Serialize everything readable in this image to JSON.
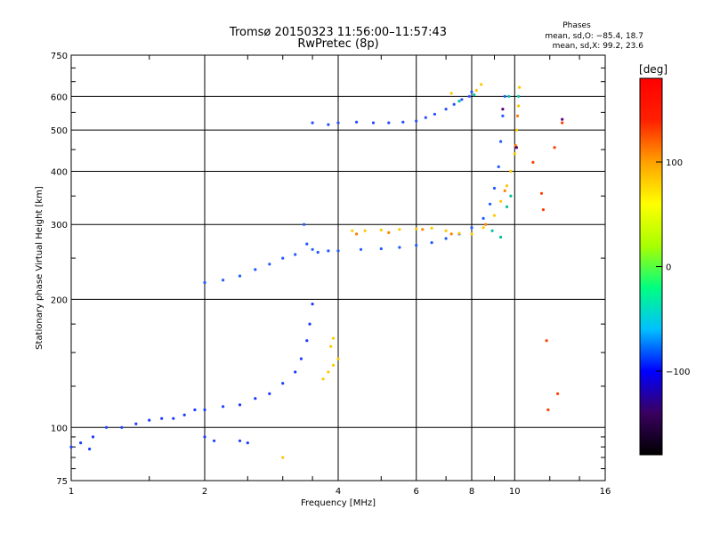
{
  "header": {
    "title_line1": "Tromsø 20150323 11:56:00–11:57:43",
    "title_line2": "RwPretec (8p)",
    "stats_heading": "Phases",
    "stats_o": "mean, sd,O: −85.4, 18.7",
    "stats_x": "mean, sd,X:  99.2, 23.6"
  },
  "chart_data": {
    "type": "scatter",
    "title": "Tromsø 20150323 11:56:00–11:57:43",
    "subtitle": "RwPretec (8p)",
    "xlabel": "Frequency [MHz]",
    "ylabel": "Stationary phase Virtual Height [km]",
    "x_scale": "log",
    "y_scale": "log",
    "xlim": [
      1,
      16
    ],
    "ylim": [
      75,
      750
    ],
    "x_ticks": [
      1,
      2,
      4,
      6,
      8,
      10,
      16
    ],
    "x_tick_labels": [
      "1",
      "2",
      "4",
      "6",
      "8",
      "10",
      "16"
    ],
    "y_ticks": [
      75,
      100,
      200,
      300,
      400,
      500,
      600,
      750
    ],
    "y_tick_labels": [
      "75",
      "100",
      "200",
      "300",
      "400",
      "500",
      "600",
      "750"
    ],
    "grid": true,
    "colorbar": {
      "label": "deg",
      "range": [
        -180,
        180
      ],
      "ticks": [
        100,
        0,
        -100
      ],
      "tick_labels": [
        "100",
        "0",
        "−100"
      ],
      "stops": [
        "#000000",
        "#3a0060",
        "#0000ff",
        "#00c0ff",
        "#00ff80",
        "#aaff00",
        "#ffff00",
        "#ffa000",
        "#ff2000",
        "#ff0000"
      ]
    },
    "series": [
      {
        "phase": -100,
        "color": "#1e3cff",
        "points": [
          [
            1.0,
            90
          ],
          [
            1.05,
            92
          ],
          [
            1.1,
            89
          ],
          [
            1.12,
            95
          ],
          [
            1.2,
            100
          ],
          [
            1.3,
            100
          ],
          [
            1.4,
            102
          ],
          [
            1.5,
            104
          ],
          [
            1.6,
            105
          ],
          [
            1.7,
            105
          ],
          [
            1.8,
            107
          ],
          [
            1.9,
            110
          ],
          [
            2.0,
            110
          ],
          [
            2.2,
            112
          ],
          [
            2.4,
            113
          ],
          [
            2.6,
            117
          ],
          [
            2.8,
            120
          ],
          [
            3.0,
            127
          ],
          [
            3.2,
            135
          ],
          [
            3.3,
            145
          ],
          [
            3.4,
            160
          ],
          [
            3.45,
            175
          ],
          [
            3.5,
            195
          ],
          [
            2.0,
            95
          ],
          [
            2.1,
            93
          ],
          [
            2.4,
            93
          ],
          [
            2.5,
            92
          ]
        ]
      },
      {
        "phase": -100,
        "color": "#1e5aff",
        "points": [
          [
            2.0,
            219
          ],
          [
            2.2,
            222
          ],
          [
            2.4,
            227
          ],
          [
            2.6,
            235
          ],
          [
            2.8,
            242
          ],
          [
            3.0,
            250
          ],
          [
            3.2,
            255
          ],
          [
            3.35,
            300
          ],
          [
            3.4,
            270
          ],
          [
            3.5,
            262
          ],
          [
            3.6,
            258
          ],
          [
            3.8,
            260
          ],
          [
            4.0,
            260
          ],
          [
            4.5,
            262
          ],
          [
            5.0,
            263
          ],
          [
            5.5,
            265
          ],
          [
            6.0,
            268
          ],
          [
            6.5,
            272
          ],
          [
            7.0,
            278
          ],
          [
            7.5,
            285
          ],
          [
            8.0,
            295
          ],
          [
            8.5,
            310
          ],
          [
            8.8,
            335
          ],
          [
            9.0,
            365
          ],
          [
            9.2,
            410
          ],
          [
            9.3,
            470
          ],
          [
            9.4,
            540
          ],
          [
            9.5,
            600
          ]
        ]
      },
      {
        "phase": -90,
        "color": "#2850ff",
        "points": [
          [
            3.5,
            520
          ],
          [
            3.8,
            515
          ],
          [
            4.0,
            520
          ],
          [
            4.4,
            522
          ],
          [
            4.8,
            520
          ],
          [
            5.2,
            520
          ],
          [
            5.6,
            522
          ],
          [
            6.0,
            525
          ],
          [
            6.3,
            535
          ],
          [
            6.6,
            545
          ],
          [
            7.0,
            560
          ],
          [
            7.3,
            575
          ],
          [
            7.6,
            590
          ],
          [
            7.9,
            600
          ],
          [
            8.0,
            615
          ]
        ]
      },
      {
        "phase": 100,
        "color": "#ffc800",
        "points": [
          [
            4.3,
            290
          ],
          [
            4.6,
            290
          ],
          [
            5.0,
            291
          ],
          [
            5.5,
            292
          ],
          [
            6.0,
            293
          ],
          [
            6.5,
            294
          ],
          [
            7.0,
            290
          ],
          [
            7.5,
            286
          ],
          [
            8.0,
            285
          ],
          [
            8.5,
            295
          ],
          [
            9.0,
            315
          ],
          [
            9.3,
            340
          ],
          [
            9.6,
            370
          ],
          [
            9.8,
            400
          ],
          [
            10.0,
            440
          ],
          [
            10.1,
            500
          ],
          [
            10.2,
            570
          ],
          [
            10.25,
            630
          ],
          [
            3.7,
            130
          ],
          [
            3.8,
            135
          ],
          [
            3.9,
            140
          ],
          [
            4.0,
            145
          ],
          [
            3.85,
            155
          ],
          [
            3.9,
            162
          ],
          [
            3.0,
            85
          ],
          [
            8.2,
            620
          ],
          [
            8.4,
            640
          ],
          [
            7.2,
            610
          ]
        ]
      },
      {
        "phase": 140,
        "color": "#ff8000",
        "points": [
          [
            4.4,
            285
          ],
          [
            5.2,
            287
          ],
          [
            6.2,
            292
          ],
          [
            7.2,
            285
          ],
          [
            8.6,
            300
          ],
          [
            9.5,
            360
          ],
          [
            10.05,
            460
          ],
          [
            10.15,
            540
          ]
        ]
      },
      {
        "phase": 0,
        "color": "#00c0a0",
        "points": [
          [
            7.5,
            585
          ],
          [
            8.1,
            605
          ],
          [
            9.7,
            600
          ],
          [
            10.2,
            600
          ],
          [
            8.9,
            290
          ],
          [
            9.3,
            280
          ],
          [
            9.6,
            330
          ],
          [
            9.8,
            350
          ]
        ]
      },
      {
        "phase": -170,
        "color": "#600080",
        "points": [
          [
            12.8,
            530
          ],
          [
            9.4,
            560
          ],
          [
            10.1,
            455
          ]
        ]
      },
      {
        "phase": 120,
        "color": "#ff4000",
        "points": [
          [
            11.8,
            160
          ],
          [
            12.5,
            120
          ],
          [
            11.5,
            355
          ],
          [
            11.6,
            325
          ],
          [
            11.9,
            110
          ],
          [
            12.3,
            455
          ],
          [
            11.0,
            420
          ],
          [
            12.8,
            520
          ]
        ]
      }
    ]
  }
}
